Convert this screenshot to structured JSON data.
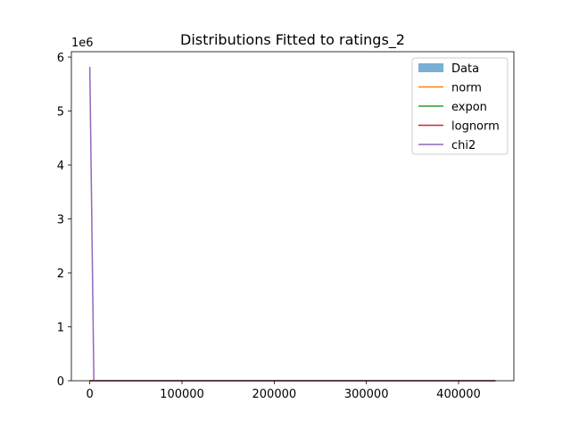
{
  "chart_data": {
    "type": "line",
    "title": "Distributions Fitted to ratings_2",
    "xlabel": "",
    "ylabel": "",
    "y_offset_label": "1e6",
    "xlim": [
      -20000,
      460000
    ],
    "ylim": [
      0,
      6.1
    ],
    "x_ticks": [
      0,
      100000,
      200000,
      300000,
      400000
    ],
    "x_tick_labels": [
      "0",
      "100000",
      "200000",
      "300000",
      "400000"
    ],
    "y_ticks": [
      0,
      1,
      2,
      3,
      4,
      5,
      6
    ],
    "y_tick_labels": [
      "0",
      "1",
      "2",
      "3",
      "4",
      "5",
      "6"
    ],
    "grid": false,
    "legend_position": "top-right",
    "series": [
      {
        "name": "Data",
        "kind": "histogram",
        "color": "#7aafd6",
        "x": [
          0,
          440000
        ],
        "values": [
          0,
          0
        ]
      },
      {
        "name": "norm",
        "kind": "line",
        "color": "#ff7f0e",
        "x": [
          0,
          440000
        ],
        "values": [
          0,
          0
        ]
      },
      {
        "name": "expon",
        "kind": "line",
        "color": "#2ca02c",
        "x": [
          0,
          440000
        ],
        "values": [
          0,
          0
        ]
      },
      {
        "name": "lognorm",
        "kind": "line",
        "color": "#d62728",
        "x": [
          0,
          440000
        ],
        "values": [
          0,
          0
        ]
      },
      {
        "name": "chi2",
        "kind": "line",
        "color": "#9467bd",
        "x": [
          0,
          4400,
          440000
        ],
        "values": [
          5.82,
          0,
          0
        ]
      }
    ]
  }
}
